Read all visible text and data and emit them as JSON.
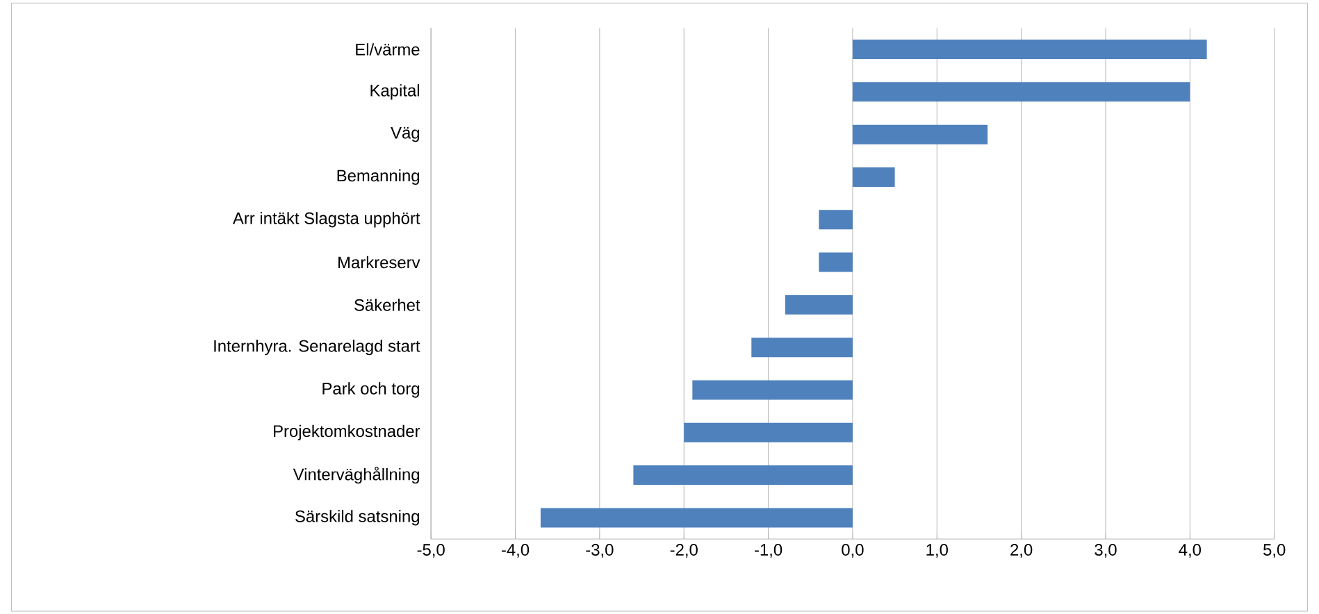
{
  "chart_data": {
    "type": "bar",
    "orientation": "horizontal",
    "color": "#4f81bd",
    "categories": [
      "El/värme",
      "Kapital",
      "Väg",
      "Bemanning",
      "Arr intäkt Slagsta upphört",
      "Markreserv",
      "Säkerhet",
      "Internhyra. Senarelagd start",
      "Park och torg",
      "Projektomkostnader",
      "Vinterväghållning",
      "Särskild satsning"
    ],
    "values": [
      4.2,
      4.0,
      1.6,
      0.5,
      -0.4,
      -0.4,
      -0.8,
      -1.2,
      -1.9,
      -2.0,
      -2.6,
      -3.7
    ],
    "xlim": [
      -5,
      5
    ],
    "xticks": [
      {
        "value": -5,
        "label": "-5,0"
      },
      {
        "value": -4,
        "label": "-4,0"
      },
      {
        "value": -3,
        "label": "-3,0"
      },
      {
        "value": -2,
        "label": "-2,0"
      },
      {
        "value": -1,
        "label": "-1,0"
      },
      {
        "value": 0,
        "label": "0,0"
      },
      {
        "value": 1,
        "label": "1,0"
      },
      {
        "value": 2,
        "label": "2,0"
      },
      {
        "value": 3,
        "label": "3,0"
      },
      {
        "value": 4,
        "label": "4,0"
      },
      {
        "value": 5,
        "label": "5,0"
      }
    ],
    "grid": "x"
  }
}
